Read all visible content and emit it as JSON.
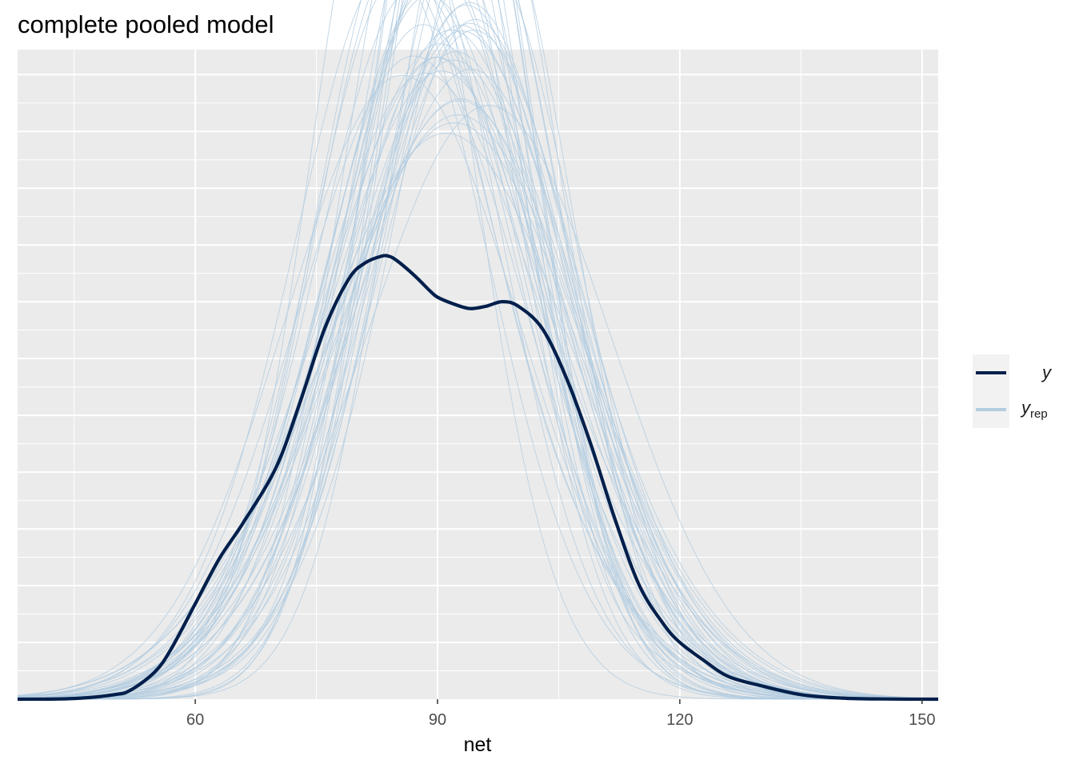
{
  "chart_data": {
    "type": "line",
    "title": "complete pooled model",
    "xlabel": "net",
    "ylabel": "",
    "xlim": [
      38,
      152
    ],
    "ylim": [
      0,
      0.0286
    ],
    "x_ticks": [
      60,
      90,
      120,
      150
    ],
    "x_tick_labels": [
      "60",
      "90",
      "120",
      "150"
    ],
    "y_tick_labels": [],
    "grid": true,
    "legend": {
      "position": "right",
      "entries": [
        {
          "label": "y",
          "subscript": "",
          "color": "#011f4b"
        },
        {
          "label": "y",
          "subscript": "rep",
          "color": "#b3cde0"
        }
      ]
    },
    "series": [
      {
        "color": "#011f4b",
        "x": [
          38,
          45,
          50,
          52,
          55,
          57,
          60,
          63,
          66,
          70,
          73,
          76,
          79,
          81,
          83,
          84,
          85,
          87,
          89,
          90,
          92,
          94,
          96,
          98,
          100,
          103,
          106,
          109,
          112,
          115,
          118,
          120,
          123,
          126,
          130,
          135,
          140,
          145,
          152
        ],
        "y": [
          0,
          3e-05,
          0.0002,
          0.0004,
          0.0012,
          0.0022,
          0.0042,
          0.0062,
          0.0078,
          0.0102,
          0.0131,
          0.0163,
          0.0185,
          0.0192,
          0.0195,
          0.0195,
          0.0193,
          0.0187,
          0.018,
          0.0177,
          0.0174,
          0.0172,
          0.0173,
          0.0175,
          0.0173,
          0.0163,
          0.0141,
          0.0112,
          0.0079,
          0.005,
          0.0033,
          0.0025,
          0.0017,
          0.001,
          0.0006,
          0.0002,
          5e-05,
          1e-05,
          0
        ]
      }
    ],
    "replicates": {
      "color": "#b3cde0",
      "count": 50,
      "base_mean": 90.6,
      "base_sd": 14.2
    }
  }
}
